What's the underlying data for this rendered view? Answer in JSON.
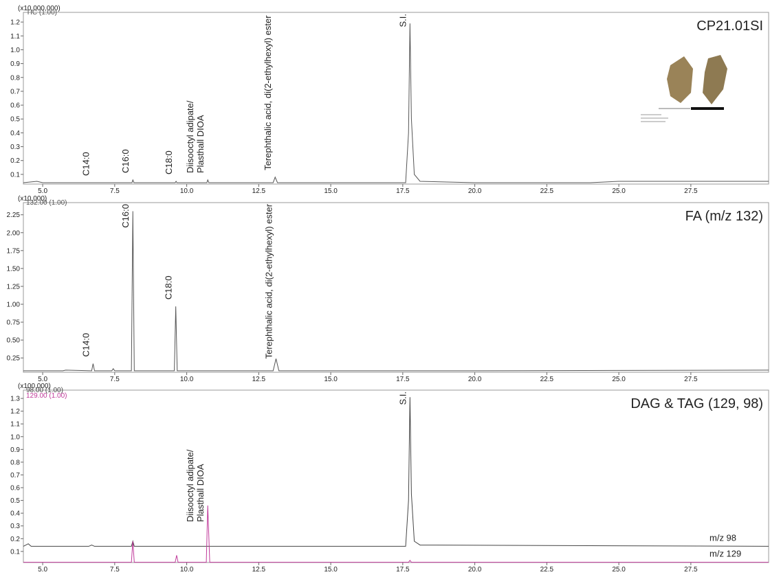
{
  "chart_data": [
    {
      "type": "line",
      "title": "CP21.01SI",
      "scale_label": "(x10,000,000)",
      "xlim": [
        4.33,
        30.2
      ],
      "xticks": [
        {
          "value": 5,
          "label": "5.0"
        },
        7.5,
        {
          "value": 10,
          "label": "10.0"
        },
        12.5,
        {
          "value": 15,
          "label": "15.0"
        },
        17.5,
        {
          "value": 20,
          "label": "20.0"
        },
        22.5,
        {
          "value": 25,
          "label": "25.0"
        },
        27.5
      ],
      "ylim": [
        0.03,
        1.27
      ],
      "yticks": [
        0.1,
        0.2,
        0.3,
        0.4,
        0.5,
        0.6,
        0.7,
        0.8,
        0.9,
        {
          "value": 1,
          "label": "1.0"
        },
        1.1,
        1.2
      ],
      "series": [
        {
          "trace_label": "TIC (1.00)",
          "color": "#555555",
          "x": [
            4.33,
            4.8,
            5.0,
            6.7,
            8.1,
            8.13,
            8.17,
            9.6,
            9.63,
            9.66,
            10.7,
            10.73,
            10.77,
            13.0,
            13.07,
            13.15,
            17.6,
            17.7,
            17.75,
            17.8,
            17.9,
            18.1,
            20,
            24,
            25,
            30.2
          ],
          "values": [
            0.04,
            0.05,
            0.04,
            0.04,
            0.04,
            0.06,
            0.04,
            0.04,
            0.05,
            0.04,
            0.04,
            0.06,
            0.04,
            0.04,
            0.08,
            0.04,
            0.04,
            0.4,
            1.19,
            0.5,
            0.1,
            0.05,
            0.04,
            0.04,
            0.05,
            0.05
          ]
        }
      ],
      "annotations": [
        {
          "lines": [
            "C14:0"
          ],
          "x": 6.75
        },
        {
          "lines": [
            "C16:0"
          ],
          "x": 8.13
        },
        {
          "lines": [
            "C18:0"
          ],
          "x": 9.63
        },
        {
          "lines": [
            "Diisooctyl adipate/",
            "Plasthall DIOA"
          ],
          "x": 10.73
        },
        {
          "lines": [
            "Terephthalic acid, di(2-ethylhexyl) ester"
          ],
          "x": 13.07
        },
        {
          "lines": [
            "S.I."
          ],
          "x": 17.75
        }
      ]
    },
    {
      "type": "line",
      "title": "FA (m/z 132)",
      "scale_label": "(x10,000)",
      "xlim": [
        4.33,
        30.2
      ],
      "xticks": [
        {
          "value": 5,
          "label": "5.0"
        },
        7.5,
        {
          "value": 10,
          "label": "10.0"
        },
        12.5,
        {
          "value": 15,
          "label": "15.0"
        },
        17.5,
        {
          "value": 20,
          "label": "20.0"
        },
        22.5,
        {
          "value": 25,
          "label": "25.0"
        },
        27.5
      ],
      "ylim": [
        0.05,
        2.42
      ],
      "yticks": [
        0.25,
        {
          "value": 0.5,
          "label": "0.50"
        },
        0.75,
        {
          "value": 1,
          "label": "1.00"
        },
        1.25,
        {
          "value": 1.5,
          "label": "1.50"
        },
        1.75,
        {
          "value": 2,
          "label": "2.00"
        },
        2.25
      ],
      "series": [
        {
          "trace_label": "132.00 (1.00)",
          "color": "#555555",
          "x": [
            4.33,
            5.7,
            5.8,
            6.7,
            6.75,
            6.8,
            7.4,
            7.45,
            7.5,
            8.08,
            8.13,
            8.18,
            9.57,
            9.62,
            9.67,
            13.0,
            13.1,
            13.2,
            20,
            30.2
          ],
          "values": [
            0.07,
            0.07,
            0.08,
            0.07,
            0.17,
            0.07,
            0.07,
            0.1,
            0.07,
            0.07,
            2.3,
            0.07,
            0.07,
            0.97,
            0.07,
            0.07,
            0.24,
            0.07,
            0.07,
            0.08
          ]
        }
      ],
      "annotations": [
        {
          "lines": [
            "C14:0"
          ],
          "x": 6.75
        },
        {
          "lines": [
            "C16:0"
          ],
          "x": 8.13
        },
        {
          "lines": [
            "C18:0"
          ],
          "x": 9.62
        },
        {
          "lines": [
            "Terephthalic acid, di(2-ethylhexyl) ester"
          ],
          "x": 13.1
        }
      ]
    },
    {
      "type": "line",
      "title": "DAG & TAG (129, 98)",
      "scale_label": "(x100,000)",
      "xlim": [
        4.33,
        30.2
      ],
      "xticks": [
        {
          "value": 5,
          "label": "5.0"
        },
        7.5,
        {
          "value": 10,
          "label": "10.0"
        },
        12.5,
        {
          "value": 15,
          "label": "15.0"
        },
        17.5,
        {
          "value": 20,
          "label": "20.0"
        },
        22.5,
        {
          "value": 25,
          "label": "25.0"
        },
        27.5
      ],
      "ylim": [
        0.013,
        1.365
      ],
      "yticks": [
        0.1,
        0.2,
        0.3,
        0.4,
        0.5,
        0.6,
        0.7,
        0.8,
        0.9,
        {
          "value": 1,
          "label": "1.0"
        },
        1.1,
        1.2,
        1.3
      ],
      "series": [
        {
          "name": "m/z 98",
          "trace_label": "98.00 (1.00)",
          "color": "#444444",
          "x": [
            4.33,
            4.5,
            4.6,
            6.6,
            6.7,
            6.8,
            8.08,
            8.13,
            8.18,
            17.6,
            17.7,
            17.75,
            17.8,
            17.9,
            18.1,
            30.2
          ],
          "values": [
            0.14,
            0.16,
            0.14,
            0.14,
            0.15,
            0.14,
            0.14,
            0.18,
            0.14,
            0.14,
            0.5,
            1.31,
            0.55,
            0.18,
            0.15,
            0.14
          ]
        },
        {
          "name": "m/z 129",
          "trace_label": "129.00 (1.00)",
          "color": "#c0399a",
          "x": [
            4.33,
            8.08,
            8.13,
            8.18,
            9.6,
            9.65,
            9.7,
            10.68,
            10.73,
            10.8,
            17.7,
            17.75,
            17.8,
            30.2
          ],
          "values": [
            0.015,
            0.015,
            0.18,
            0.015,
            0.015,
            0.07,
            0.015,
            0.015,
            0.46,
            0.015,
            0.015,
            0.03,
            0.015,
            0.015
          ]
        }
      ],
      "annotations": [
        {
          "lines": [
            "Diisooctyl adipate/",
            "Plasthall DIOA"
          ],
          "x": 10.73
        },
        {
          "lines": [
            "S.I."
          ],
          "x": 17.75
        }
      ]
    }
  ]
}
